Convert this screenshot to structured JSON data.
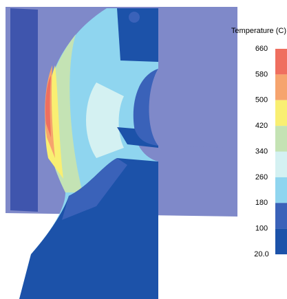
{
  "legend": {
    "title": "Temperature (C)",
    "labels": [
      "660",
      "580",
      "500",
      "420",
      "340",
      "260",
      "180",
      "100",
      "20.0"
    ],
    "colors": [
      "#ef6f5f",
      "#f6a46e",
      "#f9ef72",
      "#c4e3b4",
      "#d4f1f2",
      "#8fd5ef",
      "#3a62b9",
      "#1c52a9"
    ]
  }
}
